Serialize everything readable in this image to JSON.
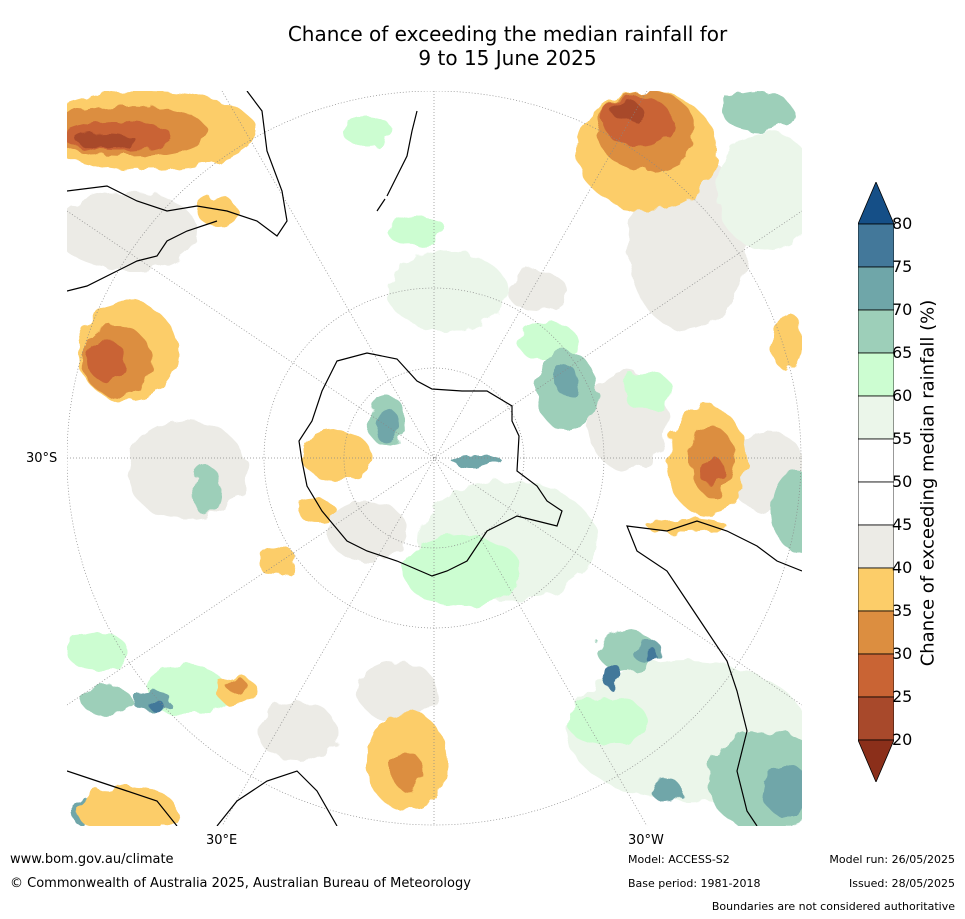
{
  "title_line1": "Chance of exceeding the median rainfall for",
  "title_line2": "9 to 15 June 2025",
  "map": {
    "lat_label": "30°S",
    "lon_labels": [
      "30°E",
      "30°W"
    ]
  },
  "colorbar": {
    "label": "Chance of exceeding median rainfall (%)",
    "ticks": [
      "80",
      "75",
      "70",
      "65",
      "60",
      "55",
      "50",
      "45",
      "40",
      "35",
      "30",
      "25",
      "20"
    ],
    "colors": [
      "#154f87",
      "#43789a",
      "#6fa6a9",
      "#9dcfb9",
      "#ccfdd1",
      "#ebf6ea",
      "#ffffff",
      "#ffffff",
      "#ecebe6",
      "#fccd69",
      "#dc8e40",
      "#c96434",
      "#a8492b",
      "#8b2f1a"
    ]
  },
  "footer": {
    "website": "www.bom.gov.au/climate",
    "copyright": "© Commonwealth of Australia 2025, Australian Bureau of Meteorology",
    "model": "Model: ACCESS-S2",
    "base_period": "Base period: 1981-2018",
    "model_run": "Model run: 26/05/2025",
    "issued": "Issued: 28/05/2025",
    "disclaimer": "Boundaries are not considered authoritative"
  }
}
